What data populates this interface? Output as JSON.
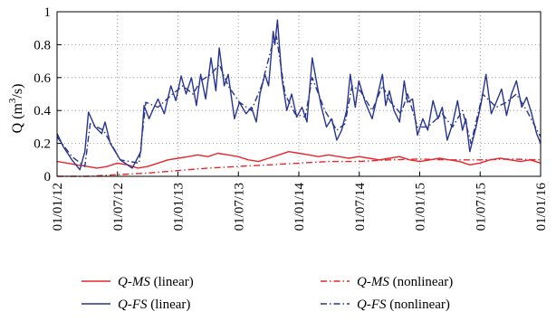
{
  "chart_data": {
    "type": "line",
    "ylabel_prefix": "Q (m",
    "ylabel_sup": "3",
    "ylabel_suffix": "/s)",
    "ylim": [
      0,
      1
    ],
    "y_ticks": [
      "0",
      "0.2",
      "0.4",
      "0.6",
      "0.8",
      "1"
    ],
    "x_ticks": [
      "01/01/12",
      "01/07/12",
      "01/01/13",
      "01/07/13",
      "01/01/14",
      "01/07/14",
      "01/01/15",
      "01/07/15",
      "01/01/16"
    ],
    "grid": true,
    "legend_position": "bottom",
    "series": [
      {
        "name_italic": "Q-MS",
        "name_rest": " (linear)",
        "color": "#e8262b",
        "style": "solid",
        "x": [
          "2012-01-01",
          "2012-02-01",
          "2012-03-01",
          "2012-04-01",
          "2012-05-01",
          "2012-06-01",
          "2012-07-01",
          "2012-08-01",
          "2012-09-01",
          "2012-10-01",
          "2012-11-01",
          "2012-12-01",
          "2013-01-01",
          "2013-02-01",
          "2013-03-01",
          "2013-04-01",
          "2013-05-01",
          "2013-06-01",
          "2013-07-01",
          "2013-08-01",
          "2013-09-01",
          "2013-10-01",
          "2013-11-01",
          "2013-12-01",
          "2014-01-01",
          "2014-02-01",
          "2014-03-01",
          "2014-04-01",
          "2014-05-01",
          "2014-06-01",
          "2014-07-01",
          "2014-08-01",
          "2014-09-01",
          "2014-10-01",
          "2014-11-01",
          "2014-12-01",
          "2015-01-01",
          "2015-02-01",
          "2015-03-01",
          "2015-04-01",
          "2015-05-01",
          "2015-06-01",
          "2015-07-01",
          "2015-08-01",
          "2015-09-01",
          "2015-10-01",
          "2015-11-01",
          "2015-12-01",
          "2016-01-01"
        ],
        "values": [
          0.09,
          0.08,
          0.07,
          0.06,
          0.05,
          0.06,
          0.08,
          0.07,
          0.05,
          0.06,
          0.08,
          0.1,
          0.11,
          0.12,
          0.13,
          0.12,
          0.14,
          0.13,
          0.12,
          0.1,
          0.09,
          0.11,
          0.13,
          0.15,
          0.14,
          0.13,
          0.12,
          0.13,
          0.12,
          0.11,
          0.12,
          0.11,
          0.1,
          0.11,
          0.12,
          0.1,
          0.09,
          0.1,
          0.11,
          0.1,
          0.09,
          0.07,
          0.08,
          0.1,
          0.11,
          0.1,
          0.09,
          0.1,
          0.08
        ]
      },
      {
        "name_italic": "Q-FS",
        "name_rest": " (linear)",
        "color": "#27358f",
        "style": "solid",
        "x": [
          "2012-01-01",
          "2012-01-20",
          "2012-02-15",
          "2012-03-10",
          "2012-03-25",
          "2012-04-05",
          "2012-04-25",
          "2012-05-15",
          "2012-05-25",
          "2012-06-10",
          "2012-07-10",
          "2012-08-15",
          "2012-09-10",
          "2012-09-20",
          "2012-10-05",
          "2012-10-20",
          "2012-11-01",
          "2012-11-20",
          "2012-12-10",
          "2012-12-25",
          "2013-01-10",
          "2013-01-25",
          "2013-02-10",
          "2013-02-25",
          "2013-03-10",
          "2013-03-25",
          "2013-04-10",
          "2013-04-25",
          "2013-05-05",
          "2013-05-20",
          "2013-06-01",
          "2013-06-20",
          "2013-07-05",
          "2013-07-25",
          "2013-08-10",
          "2013-08-25",
          "2013-09-05",
          "2013-09-20",
          "2013-10-01",
          "2013-10-15",
          "2013-10-20",
          "2013-10-28",
          "2013-11-10",
          "2013-11-25",
          "2013-12-10",
          "2013-12-25",
          "2014-01-10",
          "2014-01-25",
          "2014-02-10",
          "2014-02-25",
          "2014-03-10",
          "2014-03-25",
          "2014-04-10",
          "2014-04-25",
          "2014-05-10",
          "2014-05-25",
          "2014-06-05",
          "2014-06-20",
          "2014-07-01",
          "2014-07-20",
          "2014-08-10",
          "2014-08-25",
          "2014-09-10",
          "2014-09-20",
          "2014-10-01",
          "2014-10-15",
          "2014-11-01",
          "2014-11-15",
          "2014-11-25",
          "2014-12-10",
          "2014-12-25",
          "2015-01-10",
          "2015-01-25",
          "2015-02-10",
          "2015-02-25",
          "2015-03-10",
          "2015-03-25",
          "2015-04-10",
          "2015-04-25",
          "2015-05-10",
          "2015-05-20",
          "2015-06-01",
          "2015-06-20",
          "2015-07-05",
          "2015-07-20",
          "2015-08-05",
          "2015-08-20",
          "2015-09-05",
          "2015-09-20",
          "2015-10-05",
          "2015-10-20",
          "2015-11-05",
          "2015-11-20",
          "2015-12-05",
          "2015-12-20",
          "2016-01-01"
        ],
        "values": [
          0.26,
          0.18,
          0.1,
          0.04,
          0.15,
          0.39,
          0.3,
          0.26,
          0.33,
          0.2,
          0.1,
          0.05,
          0.15,
          0.43,
          0.35,
          0.42,
          0.47,
          0.38,
          0.55,
          0.46,
          0.61,
          0.5,
          0.6,
          0.43,
          0.62,
          0.47,
          0.72,
          0.52,
          0.78,
          0.55,
          0.62,
          0.35,
          0.45,
          0.38,
          0.42,
          0.33,
          0.5,
          0.62,
          0.55,
          0.88,
          0.8,
          0.95,
          0.6,
          0.4,
          0.5,
          0.36,
          0.42,
          0.33,
          0.72,
          0.55,
          0.42,
          0.3,
          0.35,
          0.22,
          0.28,
          0.4,
          0.62,
          0.42,
          0.58,
          0.45,
          0.35,
          0.48,
          0.62,
          0.43,
          0.52,
          0.4,
          0.33,
          0.58,
          0.45,
          0.47,
          0.25,
          0.35,
          0.28,
          0.46,
          0.35,
          0.42,
          0.22,
          0.32,
          0.46,
          0.28,
          0.35,
          0.15,
          0.3,
          0.44,
          0.62,
          0.38,
          0.45,
          0.53,
          0.37,
          0.5,
          0.58,
          0.42,
          0.48,
          0.38,
          0.26,
          0.2
        ]
      },
      {
        "name_italic": "Q-MS",
        "name_rest": " (nonlinear)",
        "color": "#e8262b",
        "style": "dashdot",
        "x": [
          "2012-01-01",
          "2012-04-01",
          "2012-07-01",
          "2012-10-01",
          "2013-01-01",
          "2013-04-01",
          "2013-07-01",
          "2013-10-01",
          "2014-01-01",
          "2014-04-01",
          "2014-07-01",
          "2014-10-01",
          "2015-01-01",
          "2015-04-01",
          "2015-07-01",
          "2015-10-01",
          "2016-01-01"
        ],
        "values": [
          0.0,
          0.0,
          0.01,
          0.02,
          0.035,
          0.05,
          0.06,
          0.07,
          0.08,
          0.09,
          0.09,
          0.1,
          0.105,
          0.1,
          0.1,
          0.105,
          0.1
        ]
      },
      {
        "name_italic": "Q-FS",
        "name_rest": " (nonlinear)",
        "color": "#27358f",
        "style": "dashdot",
        "x": [
          "2012-01-01",
          "2012-02-15",
          "2012-03-25",
          "2012-04-10",
          "2012-05-20",
          "2012-07-10",
          "2012-09-05",
          "2012-09-25",
          "2012-11-01",
          "2012-12-15",
          "2013-01-15",
          "2013-02-15",
          "2013-03-10",
          "2013-04-10",
          "2013-05-05",
          "2013-06-01",
          "2013-07-05",
          "2013-08-10",
          "2013-09-10",
          "2013-10-10",
          "2013-10-25",
          "2013-11-20",
          "2013-12-20",
          "2014-01-20",
          "2014-02-10",
          "2014-03-20",
          "2014-04-25",
          "2014-05-20",
          "2014-06-10",
          "2014-07-05",
          "2014-08-10",
          "2014-09-10",
          "2014-10-05",
          "2014-11-05",
          "2014-11-25",
          "2014-12-25",
          "2015-01-25",
          "2015-03-10",
          "2015-04-10",
          "2015-05-10",
          "2015-06-05",
          "2015-07-10",
          "2015-08-20",
          "2015-09-20",
          "2015-10-20",
          "2015-11-20",
          "2016-01-01"
        ],
        "values": [
          0.24,
          0.12,
          0.06,
          0.32,
          0.28,
          0.1,
          0.08,
          0.45,
          0.42,
          0.5,
          0.55,
          0.5,
          0.58,
          0.62,
          0.68,
          0.55,
          0.45,
          0.4,
          0.55,
          0.78,
          0.85,
          0.5,
          0.38,
          0.36,
          0.6,
          0.4,
          0.28,
          0.32,
          0.55,
          0.52,
          0.4,
          0.55,
          0.45,
          0.38,
          0.5,
          0.3,
          0.3,
          0.38,
          0.3,
          0.4,
          0.2,
          0.5,
          0.42,
          0.45,
          0.5,
          0.4,
          0.24
        ]
      }
    ]
  }
}
